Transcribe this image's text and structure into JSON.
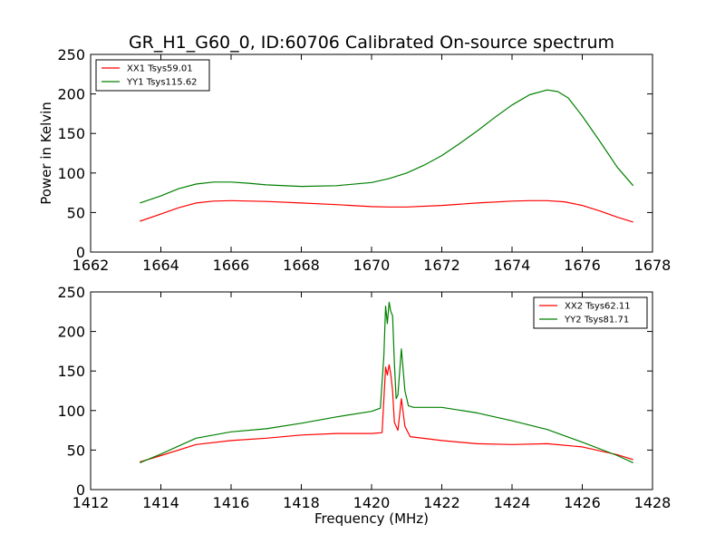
{
  "figure": {
    "title": "GR_H1_G60_0, ID:60706 Calibrated On-source spectrum"
  },
  "chart_data": [
    {
      "type": "line",
      "title": "",
      "xlabel": "",
      "ylabel": "Power in Kelvin",
      "xlim": [
        1662,
        1678
      ],
      "ylim": [
        0,
        250
      ],
      "xticks": [
        1662,
        1664,
        1666,
        1668,
        1670,
        1672,
        1674,
        1676,
        1678
      ],
      "yticks": [
        0,
        50,
        100,
        150,
        200,
        250
      ],
      "legend_position": "top-left",
      "series": [
        {
          "name": "XX1 Tsys59.01",
          "color": "#ff0000",
          "x": [
            1663.4,
            1664.0,
            1664.5,
            1665.0,
            1665.5,
            1666.0,
            1667.0,
            1668.0,
            1669.0,
            1670.0,
            1670.5,
            1671.0,
            1672.0,
            1673.0,
            1674.0,
            1674.5,
            1675.0,
            1675.5,
            1676.0,
            1676.5,
            1677.0,
            1677.45
          ],
          "y": [
            39,
            48,
            56,
            62,
            64.5,
            65,
            64,
            62,
            60,
            57.5,
            57,
            57,
            59,
            62,
            64.5,
            65,
            65,
            63.5,
            59,
            52,
            44,
            38
          ]
        },
        {
          "name": "YY1 Tsys115.62",
          "color": "#008000",
          "x": [
            1663.4,
            1664.0,
            1664.5,
            1665.0,
            1665.5,
            1666.0,
            1666.5,
            1667.0,
            1668.0,
            1669.0,
            1670.0,
            1670.5,
            1671.0,
            1671.5,
            1672.0,
            1672.5,
            1673.0,
            1673.5,
            1674.0,
            1674.5,
            1675.0,
            1675.3,
            1675.6,
            1676.0,
            1676.5,
            1677.0,
            1677.45
          ],
          "y": [
            62,
            71,
            80,
            86,
            88.5,
            88.5,
            87,
            85,
            83,
            84,
            88,
            93,
            100,
            110,
            122,
            137,
            153,
            170,
            186,
            199,
            205,
            203,
            195,
            172,
            140,
            107,
            84
          ]
        }
      ]
    },
    {
      "type": "line",
      "title": "",
      "xlabel": "Frequency (MHz)",
      "ylabel": "",
      "xlim": [
        1412,
        1428
      ],
      "ylim": [
        0,
        250
      ],
      "xticks": [
        1412,
        1414,
        1416,
        1418,
        1420,
        1422,
        1424,
        1426,
        1428
      ],
      "yticks": [
        0,
        50,
        100,
        150,
        200,
        250
      ],
      "legend_position": "top-right",
      "series": [
        {
          "name": "XX2 Tsys62.11",
          "color": "#ff0000",
          "x": [
            1413.4,
            1414.0,
            1415.0,
            1416.0,
            1417.0,
            1418.0,
            1419.0,
            1420.0,
            1420.3,
            1420.4,
            1420.45,
            1420.5,
            1420.55,
            1420.6,
            1420.65,
            1420.75,
            1420.85,
            1420.95,
            1421.1,
            1422.0,
            1423.0,
            1424.0,
            1425.0,
            1426.0,
            1427.0,
            1427.45
          ],
          "y": [
            35,
            43,
            57,
            62,
            65,
            69,
            71,
            71,
            72,
            155,
            145,
            158,
            145,
            125,
            85,
            75,
            115,
            80,
            67,
            62,
            58,
            57,
            58,
            54,
            44,
            38
          ]
        },
        {
          "name": "YY2 Tsys81.71",
          "color": "#008000",
          "x": [
            1413.4,
            1414.0,
            1415.0,
            1416.0,
            1417.0,
            1418.0,
            1419.0,
            1420.0,
            1420.25,
            1420.35,
            1420.4,
            1420.45,
            1420.5,
            1420.55,
            1420.6,
            1420.65,
            1420.7,
            1420.75,
            1420.85,
            1420.95,
            1421.05,
            1421.2,
            1422.0,
            1423.0,
            1424.0,
            1425.0,
            1426.0,
            1427.0,
            1427.45
          ],
          "y": [
            34,
            45,
            65,
            73,
            77,
            84,
            92,
            99,
            103,
            170,
            232,
            210,
            237,
            225,
            220,
            160,
            115,
            120,
            178,
            125,
            106,
            104,
            104,
            97,
            87,
            76,
            60,
            43,
            34
          ]
        }
      ]
    }
  ]
}
